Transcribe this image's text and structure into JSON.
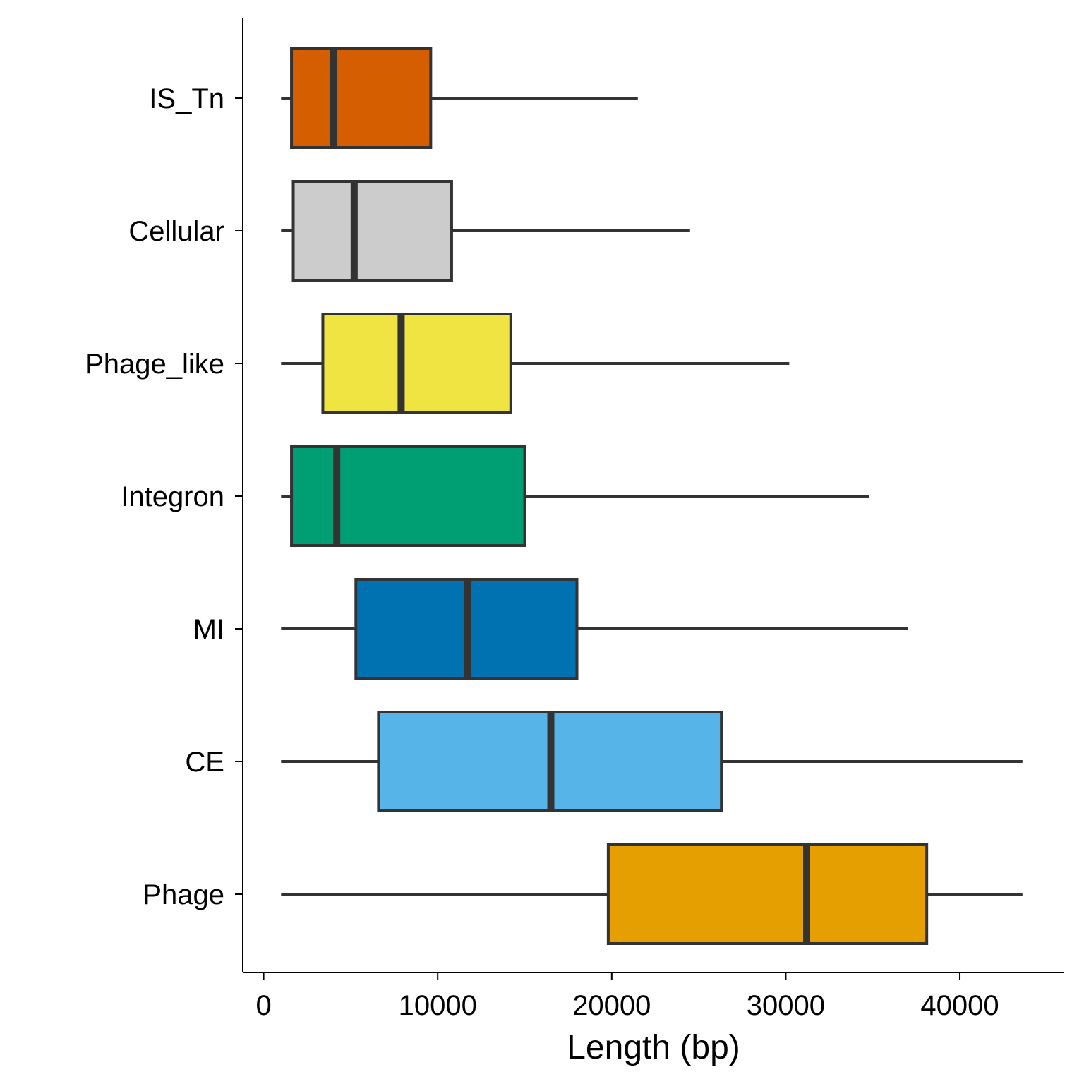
{
  "chart_data": {
    "type": "boxplot",
    "orientation": "horizontal",
    "xlabel": "Length (bp)",
    "ylabel": "",
    "xlim": [
      -1200,
      46000
    ],
    "xticks": [
      0,
      10000,
      20000,
      30000,
      40000
    ],
    "xtick_labels": [
      "0",
      "10000",
      "20000",
      "30000",
      "40000"
    ],
    "grid": false,
    "legend": "none",
    "box_outline_color": "#333333",
    "series": [
      {
        "name": "IS_Tn",
        "color": "#d55e00",
        "whisker_low": 1000,
        "q1": 1600,
        "median": 4000,
        "q3": 9600,
        "whisker_high": 21500
      },
      {
        "name": "Cellular",
        "color": "#cccccc",
        "whisker_low": 1000,
        "q1": 1700,
        "median": 5200,
        "q3": 10800,
        "whisker_high": 24500
      },
      {
        "name": "Phage_like",
        "color": "#f0e442",
        "whisker_low": 1000,
        "q1": 3400,
        "median": 7900,
        "q3": 14200,
        "whisker_high": 30200
      },
      {
        "name": "Integron",
        "color": "#009e73",
        "whisker_low": 1000,
        "q1": 1600,
        "median": 4200,
        "q3": 15000,
        "whisker_high": 34800
      },
      {
        "name": "MI",
        "color": "#0072b2",
        "whisker_low": 1000,
        "q1": 5300,
        "median": 11700,
        "q3": 18000,
        "whisker_high": 37000
      },
      {
        "name": "CE",
        "color": "#56b4e9",
        "whisker_low": 1000,
        "q1": 6600,
        "median": 16500,
        "q3": 26300,
        "whisker_high": 43600
      },
      {
        "name": "Phage",
        "color": "#e69f00",
        "whisker_low": 1000,
        "q1": 19800,
        "median": 31200,
        "q3": 38100,
        "whisker_high": 43600
      }
    ]
  }
}
